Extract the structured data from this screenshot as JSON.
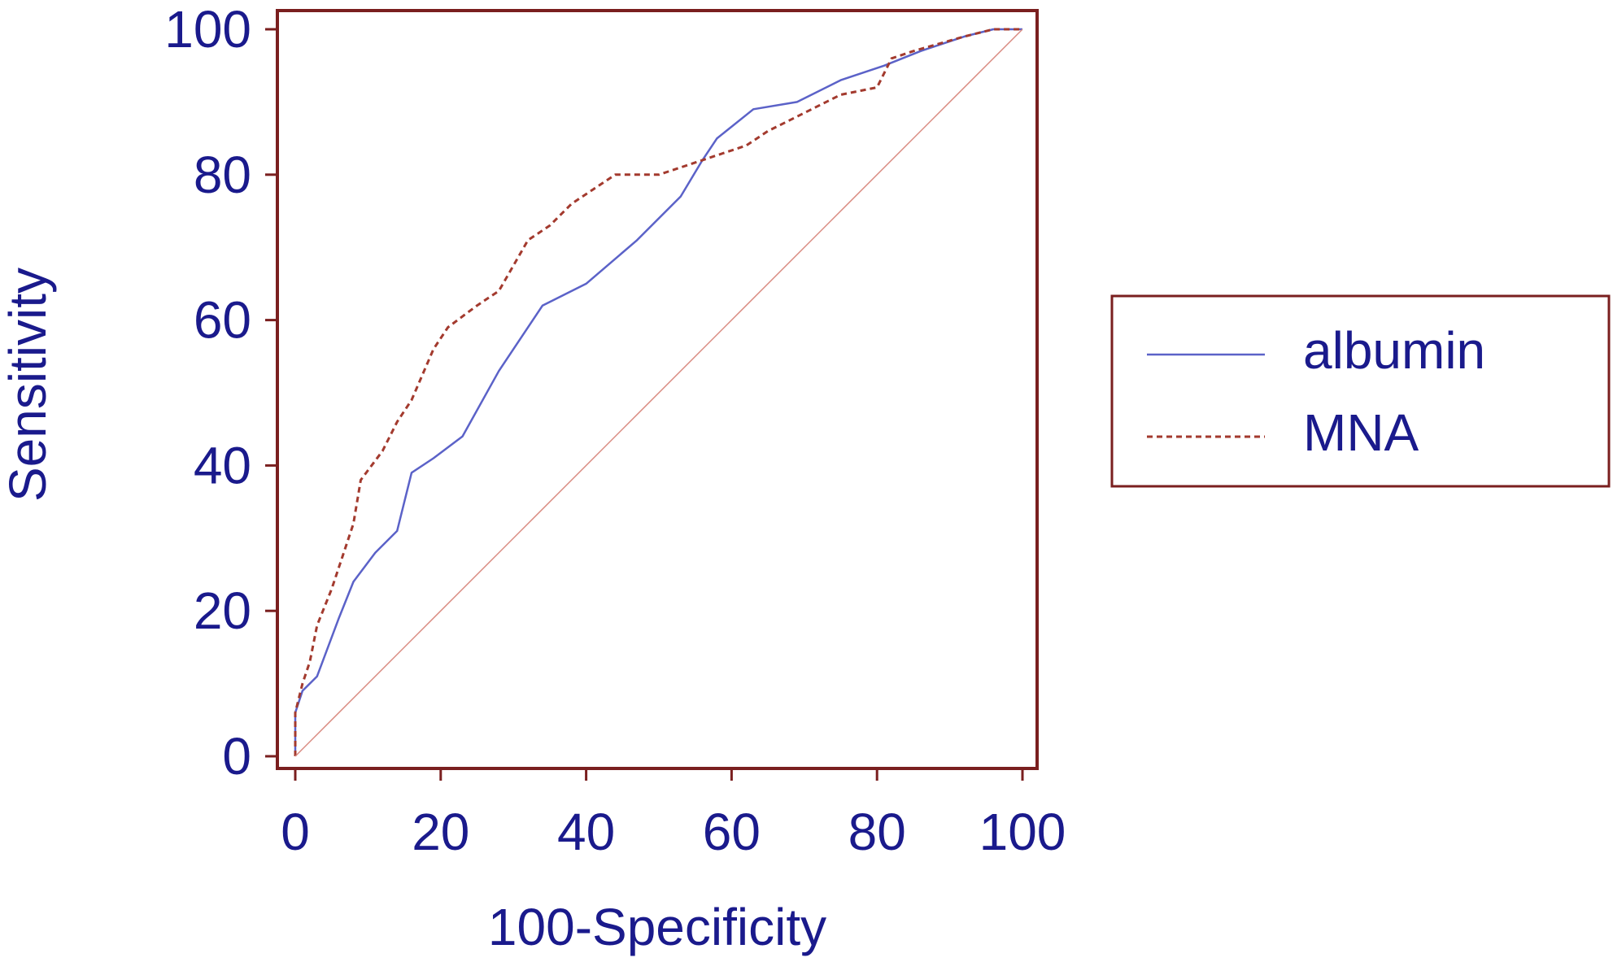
{
  "chart_data": {
    "type": "line",
    "title": "",
    "xlabel": "100-Specificity",
    "ylabel": "Sensitivity",
    "xlim": [
      0,
      100
    ],
    "ylim": [
      0,
      100
    ],
    "x_ticks": [
      0,
      20,
      40,
      60,
      80,
      100
    ],
    "y_ticks": [
      0,
      20,
      40,
      60,
      80,
      100
    ],
    "grid": false,
    "legend_position": "right",
    "colors": {
      "text": "#1a1a8c",
      "frame": "#7a1f1f",
      "albumin": "#5b62c8",
      "MNA": "#a33a2e",
      "reference": "#d98a80"
    },
    "series": [
      {
        "name": "albumin",
        "style": "solid",
        "x": [
          0,
          0,
          1,
          3,
          6,
          8,
          11,
          14,
          16,
          19,
          23,
          28,
          34,
          40,
          47,
          53,
          56,
          58,
          63,
          69,
          75,
          81,
          86,
          92,
          96,
          100
        ],
        "y": [
          0,
          6,
          9,
          11,
          19,
          24,
          28,
          31,
          39,
          41,
          44,
          53,
          62,
          65,
          71,
          77,
          82,
          85,
          89,
          90,
          93,
          95,
          97,
          99,
          100,
          100
        ]
      },
      {
        "name": "MNA",
        "style": "dashed",
        "x": [
          0,
          0,
          1,
          2,
          3,
          5,
          7,
          8,
          9,
          12,
          14,
          16,
          19,
          21,
          25,
          28,
          32,
          35,
          38,
          41,
          44,
          46,
          50,
          53,
          56,
          62,
          65,
          69,
          75,
          80,
          82,
          85,
          92,
          96,
          100
        ],
        "y": [
          0,
          6,
          10,
          13,
          18,
          23,
          29,
          32,
          38,
          42,
          46,
          49,
          56,
          59,
          62,
          64,
          71,
          73,
          76,
          78,
          80,
          80,
          80,
          81,
          82,
          84,
          86,
          88,
          91,
          92,
          96,
          97,
          99,
          100,
          100
        ]
      },
      {
        "name": "",
        "role": "reference-diagonal",
        "style": "solid-thin",
        "x": [
          0,
          100
        ],
        "y": [
          0,
          100
        ]
      }
    ]
  }
}
